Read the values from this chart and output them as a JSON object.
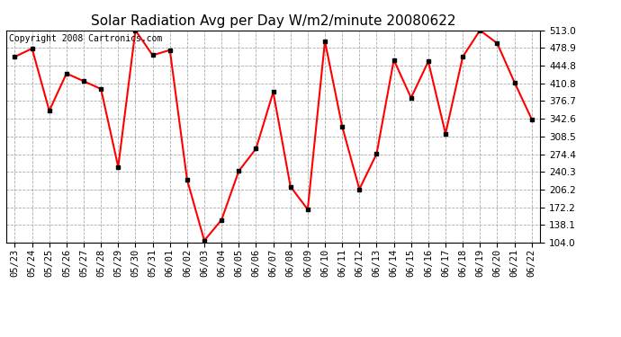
{
  "title": "Solar Radiation Avg per Day W/m2/minute 20080622",
  "copyright_text": "Copyright 2008 Cartronics.com",
  "dates": [
    "05/23",
    "05/24",
    "05/25",
    "05/26",
    "05/27",
    "05/28",
    "05/29",
    "05/30",
    "05/31",
    "06/01",
    "06/02",
    "06/03",
    "06/04",
    "06/05",
    "06/06",
    "06/07",
    "06/08",
    "06/09",
    "06/10",
    "06/11",
    "06/12",
    "06/13",
    "06/14",
    "06/15",
    "06/16",
    "06/17",
    "06/18",
    "06/19",
    "06/20",
    "06/21",
    "06/22"
  ],
  "values": [
    462,
    478,
    358,
    430,
    415,
    400,
    250,
    513,
    465,
    475,
    225,
    108,
    148,
    242,
    285,
    394,
    212,
    168,
    492,
    328,
    207,
    275,
    456,
    383,
    453,
    314,
    462,
    513,
    488,
    413,
    342
  ],
  "yticks": [
    104.0,
    138.1,
    172.2,
    206.2,
    240.3,
    274.4,
    308.5,
    342.6,
    376.7,
    410.8,
    444.8,
    478.9,
    513.0
  ],
  "ymin": 104.0,
  "ymax": 513.0,
  "line_color": "#ff0000",
  "marker": "s",
  "marker_size": 3,
  "marker_color": "#000000",
  "bg_color": "#ffffff",
  "grid_color": "#aaaaaa",
  "title_fontsize": 11,
  "tick_fontsize": 7.5,
  "copyright_fontsize": 7
}
